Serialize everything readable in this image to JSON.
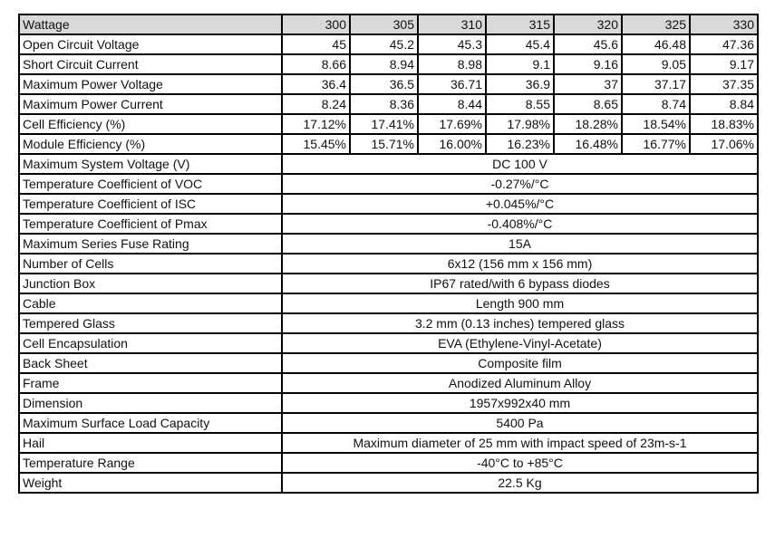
{
  "header": {
    "label": "Wattage",
    "values": [
      "300",
      "305",
      "310",
      "315",
      "320",
      "325",
      "330"
    ]
  },
  "per_model_rows": [
    {
      "label": "Open Circuit Voltage",
      "values": [
        "45",
        "45.2",
        "45.3",
        "45.4",
        "45.6",
        "46.48",
        "47.36"
      ]
    },
    {
      "label": "Short Circuit Current",
      "values": [
        "8.66",
        "8.94",
        "8.98",
        "9.1",
        "9.16",
        "9.05",
        "9.17"
      ]
    },
    {
      "label": "Maximum Power Voltage",
      "values": [
        "36.4",
        "36.5",
        "36.71",
        "36.9",
        "37",
        "37.17",
        "37.35"
      ]
    },
    {
      "label": "Maximum Power Current",
      "values": [
        "8.24",
        "8.36",
        "8.44",
        "8.55",
        "8.65",
        "8.74",
        "8.84"
      ]
    },
    {
      "label": "Cell Efficiency (%)",
      "values": [
        "17.12%",
        "17.41%",
        "17.69%",
        "17.98%",
        "18.28%",
        "18.54%",
        "18.83%"
      ]
    },
    {
      "label": "Module Efficiency (%)",
      "values": [
        "15.45%",
        "15.71%",
        "16.00%",
        "16.23%",
        "16.48%",
        "16.77%",
        "17.06%"
      ]
    }
  ],
  "common_rows": [
    {
      "label": "Maximum System Voltage (V)",
      "value": "DC 100 V"
    },
    {
      "label": "Temperature Coefficient of VOC",
      "value": "-0.27%/°C"
    },
    {
      "label": "Temperature Coefficient of ISC",
      "value": "+0.045%/°C"
    },
    {
      "label": "Temperature Coefficient of Pmax",
      "value": "-0.408%/°C"
    },
    {
      "label": "Maximum Series Fuse Rating",
      "value": "15A"
    },
    {
      "label": "Number of Cells",
      "value": "6x12 (156 mm x 156 mm)"
    },
    {
      "label": "Junction Box",
      "value": "IP67 rated/with 6 bypass diodes"
    },
    {
      "label": "Cable",
      "value": "Length 900 mm"
    },
    {
      "label": "Tempered Glass",
      "value": "3.2 mm (0.13 inches) tempered glass"
    },
    {
      "label": "Cell Encapsulation",
      "value": "EVA (Ethylene-Vinyl-Acetate)"
    },
    {
      "label": "Back Sheet",
      "value": "Composite film"
    },
    {
      "label": "Frame",
      "value": "Anodized Aluminum Alloy"
    },
    {
      "label": "Dimension",
      "value": "1957x992x40 mm"
    },
    {
      "label": "Maximum Surface Load Capacity",
      "value": "5400 Pa"
    },
    {
      "label": "Hail",
      "value": "Maximum diameter of 25 mm with impact speed of 23m-s-1"
    },
    {
      "label": "Temperature Range",
      "value": "-40°C to +85°C"
    },
    {
      "label": "Weight",
      "value": "22.5 Kg"
    }
  ],
  "colors": {
    "header_bg": "#d9d9d9",
    "border": "#000000"
  }
}
